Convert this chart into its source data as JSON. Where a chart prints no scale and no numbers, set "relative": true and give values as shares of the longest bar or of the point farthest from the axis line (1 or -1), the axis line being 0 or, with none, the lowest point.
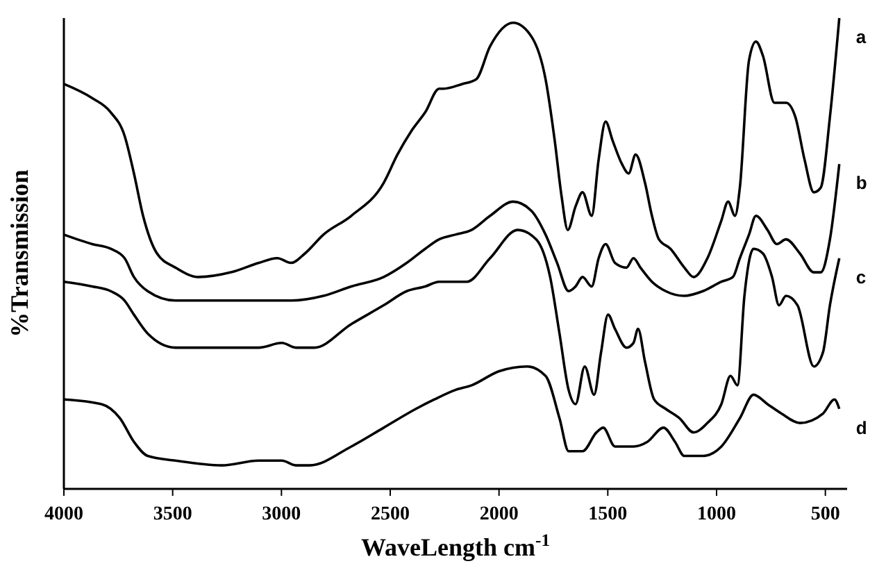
{
  "chart_data": {
    "type": "line",
    "xlabel": "WaveLength cm$^{-1}$",
    "ylabel": "%Transmission",
    "relative": true,
    "xlim": [
      4000,
      400
    ],
    "xticks": [
      4000,
      3500,
      3000,
      2500,
      2000,
      1500,
      1000,
      500
    ],
    "tick_labels": "x",
    "grid": false,
    "marker": "none",
    "line_style": "solid",
    "series": [
      {
        "name": "a",
        "color": "#000000",
        "x": [
          4000,
          3870,
          3785,
          3721,
          3678,
          3636,
          3572,
          3487,
          3381,
          3232,
          3104,
          3019,
          2956,
          2892,
          2807,
          2679,
          2530,
          2467,
          2403,
          2339,
          2275,
          2254,
          2169,
          2105,
          2041,
          1935,
          1850,
          1786,
          1744,
          1712,
          1684,
          1648,
          1616,
          1574,
          1542,
          1510,
          1478,
          1435,
          1404,
          1372,
          1329,
          1297,
          1265,
          1212,
          1148,
          1106,
          1042,
          978,
          947,
          915,
          893,
          851,
          819,
          787,
          734,
          681,
          638,
          596,
          553,
          521,
          479,
          436
        ],
        "values": [
          0.86,
          0.83,
          0.8,
          0.75,
          0.67,
          0.58,
          0.5,
          0.47,
          0.45,
          0.46,
          0.48,
          0.49,
          0.48,
          0.5,
          0.54,
          0.58,
          0.65,
          0.71,
          0.76,
          0.8,
          0.85,
          0.85,
          0.86,
          0.87,
          0.94,
          0.99,
          0.96,
          0.87,
          0.74,
          0.62,
          0.55,
          0.6,
          0.63,
          0.58,
          0.7,
          0.78,
          0.74,
          0.69,
          0.67,
          0.71,
          0.65,
          0.58,
          0.53,
          0.51,
          0.47,
          0.45,
          0.49,
          0.57,
          0.61,
          0.58,
          0.64,
          0.91,
          0.95,
          0.92,
          0.82,
          0.82,
          0.79,
          0.7,
          0.63,
          0.64,
          0.79,
          1
        ]
      },
      {
        "name": "b",
        "color": "#000000",
        "x": [
          4000,
          3870,
          3785,
          3721,
          3678,
          3615,
          3487,
          3296,
          3104,
          2956,
          2807,
          2679,
          2530,
          2424,
          2339,
          2275,
          2201,
          2126,
          2041,
          1935,
          1850,
          1786,
          1733,
          1680,
          1648,
          1616,
          1574,
          1542,
          1510,
          1467,
          1414,
          1382,
          1350,
          1297,
          1234,
          1148,
          1063,
          978,
          925,
          893,
          851,
          819,
          766,
          723,
          681,
          617,
          553,
          521,
          479,
          436
        ],
        "values": [
          0.54,
          0.52,
          0.51,
          0.49,
          0.45,
          0.42,
          0.4,
          0.4,
          0.4,
          0.4,
          0.41,
          0.43,
          0.45,
          0.48,
          0.51,
          0.53,
          0.54,
          0.55,
          0.58,
          0.61,
          0.59,
          0.54,
          0.48,
          0.42,
          0.43,
          0.45,
          0.43,
          0.49,
          0.52,
          0.48,
          0.47,
          0.49,
          0.47,
          0.44,
          0.42,
          0.41,
          0.42,
          0.44,
          0.45,
          0.49,
          0.54,
          0.58,
          0.55,
          0.52,
          0.53,
          0.5,
          0.46,
          0.46,
          0.53,
          0.69
        ]
      },
      {
        "name": "c",
        "color": "#000000",
        "x": [
          4000,
          3870,
          3785,
          3721,
          3678,
          3615,
          3487,
          3296,
          3104,
          2998,
          2934,
          2849,
          2679,
          2530,
          2424,
          2339,
          2275,
          2201,
          2148,
          2041,
          1914,
          1829,
          1765,
          1722,
          1680,
          1648,
          1606,
          1563,
          1531,
          1499,
          1467,
          1414,
          1382,
          1361,
          1329,
          1287,
          1234,
          1170,
          1106,
          1042,
          978,
          936,
          904,
          872,
          830,
          787,
          745,
          713,
          681,
          628,
          553,
          511,
          479,
          436
        ],
        "values": [
          0.44,
          0.43,
          0.42,
          0.4,
          0.37,
          0.33,
          0.3,
          0.3,
          0.3,
          0.31,
          0.3,
          0.3,
          0.35,
          0.39,
          0.42,
          0.43,
          0.44,
          0.44,
          0.44,
          0.49,
          0.55,
          0.53,
          0.45,
          0.33,
          0.21,
          0.18,
          0.26,
          0.2,
          0.29,
          0.37,
          0.34,
          0.3,
          0.31,
          0.34,
          0.27,
          0.19,
          0.17,
          0.15,
          0.12,
          0.14,
          0.18,
          0.24,
          0.22,
          0.41,
          0.51,
          0.5,
          0.45,
          0.39,
          0.41,
          0.39,
          0.26,
          0.29,
          0.39,
          0.49
        ]
      },
      {
        "name": "d",
        "color": "#000000",
        "x": [
          4000,
          3827,
          3742,
          3678,
          3615,
          3487,
          3275,
          3104,
          2998,
          2934,
          2871,
          2679,
          2530,
          2382,
          2297,
          2201,
          2126,
          1999,
          1871,
          1786,
          1722,
          1680,
          1616,
          1552,
          1521,
          1467,
          1382,
          1318,
          1244,
          1191,
          1148,
          1063,
          978,
          893,
          830,
          766,
          702,
          617,
          511,
          458,
          436
        ],
        "values": [
          0.19,
          0.18,
          0.15,
          0.1,
          0.07,
          0.06,
          0.05,
          0.06,
          0.06,
          0.05,
          0.05,
          0.09,
          0.13,
          0.17,
          0.19,
          0.21,
          0.22,
          0.25,
          0.26,
          0.24,
          0.15,
          0.08,
          0.08,
          0.12,
          0.13,
          0.09,
          0.09,
          0.1,
          0.13,
          0.1,
          0.07,
          0.07,
          0.09,
          0.15,
          0.2,
          0.18,
          0.16,
          0.14,
          0.16,
          0.19,
          0.17
        ]
      }
    ]
  }
}
